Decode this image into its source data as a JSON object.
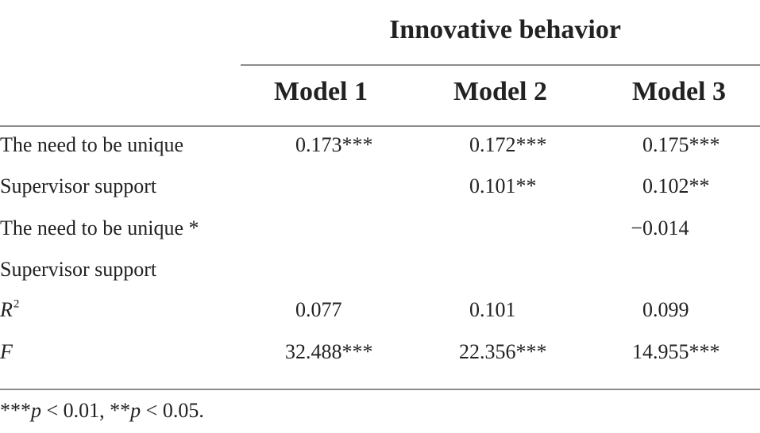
{
  "header": {
    "group": "Innovative behavior",
    "columns": [
      "Model 1",
      "Model 2",
      "Model 3"
    ]
  },
  "table": {
    "rows": [
      {
        "label": "The need to be unique",
        "values": [
          "0.173***",
          "0.172***",
          "0.175***"
        ]
      },
      {
        "label": "Supervisor support",
        "values": [
          null,
          "0.101**",
          "0.102**"
        ]
      },
      {
        "label": "The need to be unique *",
        "values": [
          null,
          null,
          "−0.014"
        ]
      },
      {
        "label": "Supervisor support",
        "values": [
          null,
          null,
          null
        ]
      },
      {
        "label": "R",
        "label_sup": "2",
        "values": [
          "0.077",
          "0.101",
          "0.099"
        ]
      },
      {
        "label": "F",
        "values": [
          "32.488***",
          "22.356***",
          "14.955***"
        ]
      }
    ]
  },
  "footnote": [
    "***",
    "p",
    " < 0.01, **",
    "p",
    " < 0.05."
  ]
}
